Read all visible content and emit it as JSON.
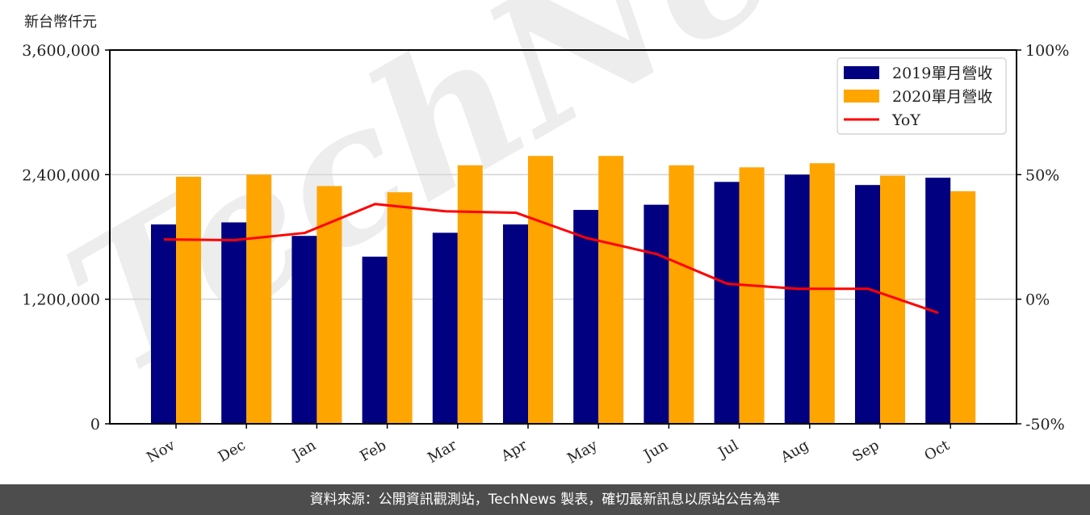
{
  "chart_data": {
    "type": "bar",
    "title": "",
    "unit_label": "新台幣仟元",
    "xlabel": "",
    "ylabel": "新台幣仟元",
    "y2label": "",
    "categories": [
      "Nov",
      "Dec",
      "Jan",
      "Feb",
      "Mar",
      "Apr",
      "May",
      "Jun",
      "Jul",
      "Aug",
      "Sep",
      "Oct"
    ],
    "series": [
      {
        "name": "2019單月營收",
        "type": "bar",
        "color": "#000080",
        "values": [
          1920000,
          1940000,
          1810000,
          1610000,
          1840000,
          1920000,
          2060000,
          2110000,
          2330000,
          2400000,
          2300000,
          2370000
        ]
      },
      {
        "name": "2020單月營收",
        "type": "bar",
        "color": "#FFA500",
        "values": [
          2380000,
          2400000,
          2290000,
          2230000,
          2490000,
          2580000,
          2580000,
          2490000,
          2470000,
          2510000,
          2390000,
          2240000
        ]
      },
      {
        "name": "YoY",
        "type": "line",
        "axis": "right",
        "color": "#FF0000",
        "unit": "%",
        "values": [
          24.0,
          23.7,
          26.6,
          38.2,
          35.3,
          34.7,
          24.6,
          18.1,
          6.2,
          4.2,
          4.2,
          -5.5
        ]
      }
    ],
    "ylim": [
      0,
      3600000
    ],
    "y2lim": [
      -50,
      100
    ],
    "yticks": [
      "0",
      "1,200,000",
      "2,400,000",
      "3,600,000"
    ],
    "ytick_values": [
      0,
      1200000,
      2400000,
      3600000
    ],
    "y2ticks": [
      "-50%",
      "0%",
      "50%",
      "100%"
    ],
    "y2tick_values": [
      -50,
      0,
      50,
      100
    ],
    "grid": "horizontal",
    "legend_position": "upper right",
    "watermark": "TechNews"
  },
  "footer": {
    "text": "資料來源：公開資訊觀測站，TechNews 製表，確切最新訊息以原站公告為準"
  }
}
